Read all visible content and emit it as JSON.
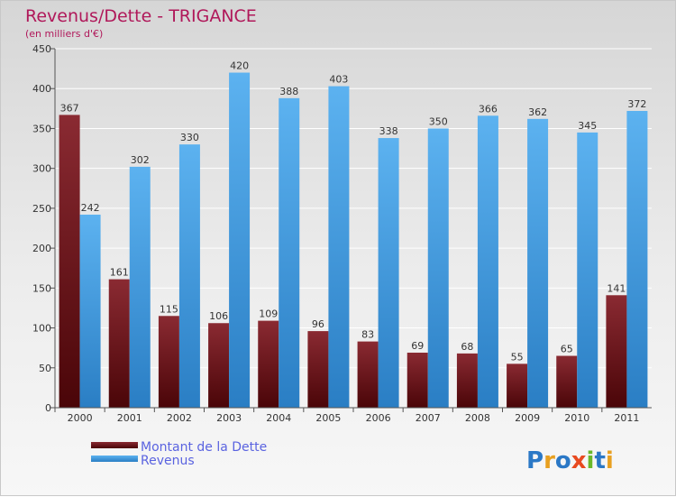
{
  "chart_data": {
    "type": "bar",
    "title": "Revenus/Dette - TRIGANCE",
    "subtitle": "(en milliers d'€)",
    "categories": [
      "2000",
      "2001",
      "2002",
      "2003",
      "2004",
      "2005",
      "2006",
      "2007",
      "2008",
      "2009",
      "2010",
      "2011"
    ],
    "series": [
      {
        "name": "Montant de la Dette",
        "color": "#7a1a22",
        "values": [
          367,
          161,
          115,
          106,
          109,
          96,
          83,
          69,
          68,
          55,
          65,
          141
        ]
      },
      {
        "name": "Revenus",
        "color": "#4aa3e8",
        "values": [
          242,
          302,
          330,
          420,
          388,
          403,
          338,
          350,
          366,
          362,
          345,
          372
        ]
      }
    ],
    "ylim": [
      0,
      450
    ],
    "yticks": [
      0,
      50,
      100,
      150,
      200,
      250,
      300,
      350,
      400,
      450
    ],
    "grid": true,
    "legend_position": "bottom-left"
  },
  "logo": {
    "text": "Proxiti"
  }
}
